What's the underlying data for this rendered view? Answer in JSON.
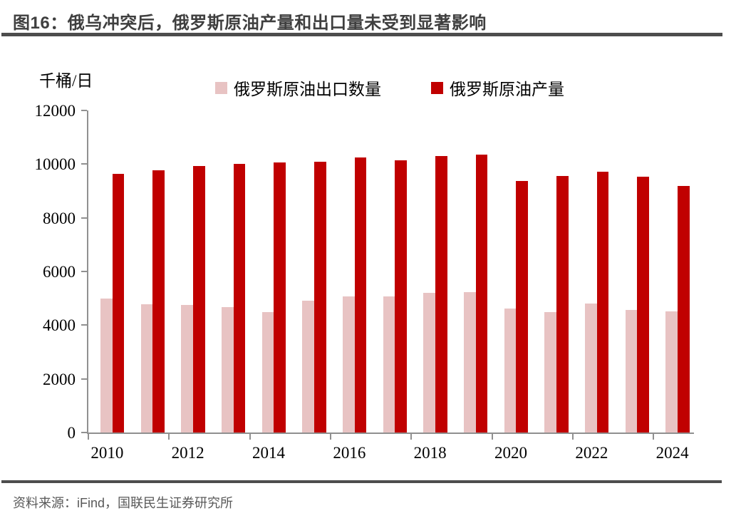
{
  "title": "图16：俄乌冲突后，俄罗斯原油产量和出口量未受到显著影响",
  "unit_label": "千桶/日",
  "legend": [
    {
      "label": "俄罗斯原油出口数量",
      "color": "#e8c3c3"
    },
    {
      "label": "俄罗斯原油产量",
      "color": "#c00000"
    }
  ],
  "footer": {
    "source_text": "资料来源：iFind，国联民生证券研究所"
  },
  "colors": {
    "export_pink": "#e8c3c3",
    "production_red": "#c00000",
    "axis_gray": "#909090",
    "title_text": "#3f3f3f",
    "rule_gray": "#4d4d4d",
    "source_text_gray": "#595959"
  },
  "chart_data": {
    "type": "bar",
    "title": "俄罗斯原油产量和出口量",
    "ylabel": "千桶/日",
    "xlabel": "",
    "ylim": [
      0,
      12000
    ],
    "yticks": [
      0,
      2000,
      4000,
      6000,
      8000,
      10000,
      12000
    ],
    "grid": false,
    "legend_position": "top",
    "categories": [
      2010,
      2011,
      2012,
      2013,
      2014,
      2015,
      2016,
      2017,
      2018,
      2019,
      2020,
      2021,
      2022,
      2023,
      2024
    ],
    "xticklabels": [
      "2010",
      "2012",
      "2014",
      "2016",
      "2018",
      "2020",
      "2022",
      "2024"
    ],
    "xtick_label_every": 2,
    "series": [
      {
        "name": "俄罗斯原油出口数量",
        "color": "#e8c3c3",
        "values": [
          5000,
          4790,
          4760,
          4680,
          4500,
          4900,
          5080,
          5060,
          5200,
          5230,
          4620,
          4490,
          4800,
          4580,
          4520
        ]
      },
      {
        "name": "俄罗斯原油产量",
        "color": "#c00000",
        "values": [
          9650,
          9760,
          9920,
          10010,
          10060,
          10080,
          10250,
          10150,
          10310,
          10360,
          9380,
          9560,
          9720,
          9540,
          9180
        ]
      }
    ]
  }
}
